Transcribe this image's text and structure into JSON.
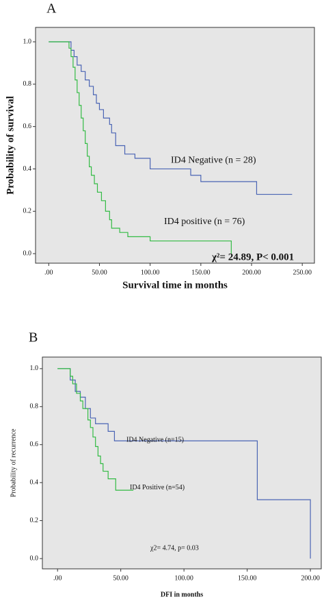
{
  "chart_data": [
    {
      "type": "step",
      "panel_label": "A",
      "ylabel": "Probability  of survival",
      "xlabel": "Survival  time in months",
      "xlim": [
        -13,
        262
      ],
      "ylim": [
        -0.045,
        1.068
      ],
      "xticks": [
        {
          "value": 0,
          "label": ".00"
        },
        {
          "value": 50,
          "label": "50.00"
        },
        {
          "value": 100,
          "label": "100.00"
        },
        {
          "value": 150,
          "label": "150.00"
        },
        {
          "value": 200,
          "label": "200.00"
        },
        {
          "value": 250,
          "label": "250.00"
        }
      ],
      "yticks": [
        {
          "value": 0,
          "label": "0.0"
        },
        {
          "value": 0.2,
          "label": "0.2"
        },
        {
          "value": 0.4,
          "label": "0.4"
        },
        {
          "value": 0.6,
          "label": "0.6"
        },
        {
          "value": 0.8,
          "label": "0.8"
        },
        {
          "value": 1,
          "label": "1.0"
        }
      ],
      "series": [
        {
          "name": "ID4 Negative  (n = 28)",
          "color": "#4a64b4",
          "x": [
            0,
            22,
            25,
            28,
            32,
            36,
            40,
            44,
            47,
            50,
            54,
            60,
            62,
            66,
            75,
            85,
            100,
            140,
            150,
            205,
            240
          ],
          "values": [
            1,
            0.96,
            0.93,
            0.89,
            0.86,
            0.82,
            0.79,
            0.75,
            0.71,
            0.68,
            0.64,
            0.61,
            0.57,
            0.51,
            0.47,
            0.45,
            0.4,
            0.37,
            0.34,
            0.28,
            0.28
          ]
        },
        {
          "name": "ID4 positive  (n = 76)",
          "color": "#33bb44",
          "x": [
            0,
            20,
            22,
            24,
            26,
            28,
            30,
            32,
            34,
            36,
            38,
            40,
            42,
            45,
            48,
            52,
            56,
            60,
            62,
            70,
            78,
            100,
            175,
            180
          ],
          "values": [
            1,
            0.97,
            0.93,
            0.88,
            0.82,
            0.76,
            0.7,
            0.64,
            0.58,
            0.52,
            0.46,
            0.41,
            0.37,
            0.33,
            0.29,
            0.25,
            0.2,
            0.16,
            0.12,
            0.1,
            0.08,
            0.06,
            0.06,
            0
          ]
        }
      ],
      "annotation": "χ²= 24.89, P< 0.001"
    },
    {
      "type": "step",
      "panel_label": "B",
      "ylabel": "Probability  of recurrence",
      "xlabel": "DFI in months",
      "xlim": [
        -12,
        208.6
      ],
      "ylim": [
        -0.054,
        1.061
      ],
      "xticks": [
        {
          "value": 0,
          "label": ".00"
        },
        {
          "value": 50,
          "label": "50.00"
        },
        {
          "value": 100,
          "label": "100.00"
        },
        {
          "value": 150,
          "label": "150.00"
        },
        {
          "value": 200,
          "label": "200.00"
        }
      ],
      "yticks": [
        {
          "value": 0,
          "label": "0.0"
        },
        {
          "value": 0.2,
          "label": "0.2"
        },
        {
          "value": 0.4,
          "label": "0.4"
        },
        {
          "value": 0.6,
          "label": "0.6"
        },
        {
          "value": 0.8,
          "label": "0.8"
        },
        {
          "value": 1,
          "label": "1.0"
        }
      ],
      "series": [
        {
          "name": "ID4 Negative  (n=15)",
          "color": "#4a64b4",
          "x": [
            0,
            10,
            14,
            18,
            22,
            26,
            30,
            40,
            45,
            158,
            200
          ],
          "values": [
            1,
            0.94,
            0.88,
            0.85,
            0.79,
            0.74,
            0.71,
            0.67,
            0.62,
            0.31,
            0
          ]
        },
        {
          "name": "ID4 Positive  (n=54)",
          "color": "#33bb44",
          "x": [
            0,
            10,
            12,
            15,
            18,
            20,
            24,
            26,
            28,
            30,
            32,
            34,
            36,
            40,
            46,
            60
          ],
          "values": [
            1,
            0.96,
            0.92,
            0.87,
            0.83,
            0.79,
            0.73,
            0.69,
            0.64,
            0.59,
            0.54,
            0.5,
            0.46,
            0.42,
            0.36,
            0.36
          ]
        }
      ],
      "annotation": "χ2= 4.74, p= 0.03"
    }
  ]
}
